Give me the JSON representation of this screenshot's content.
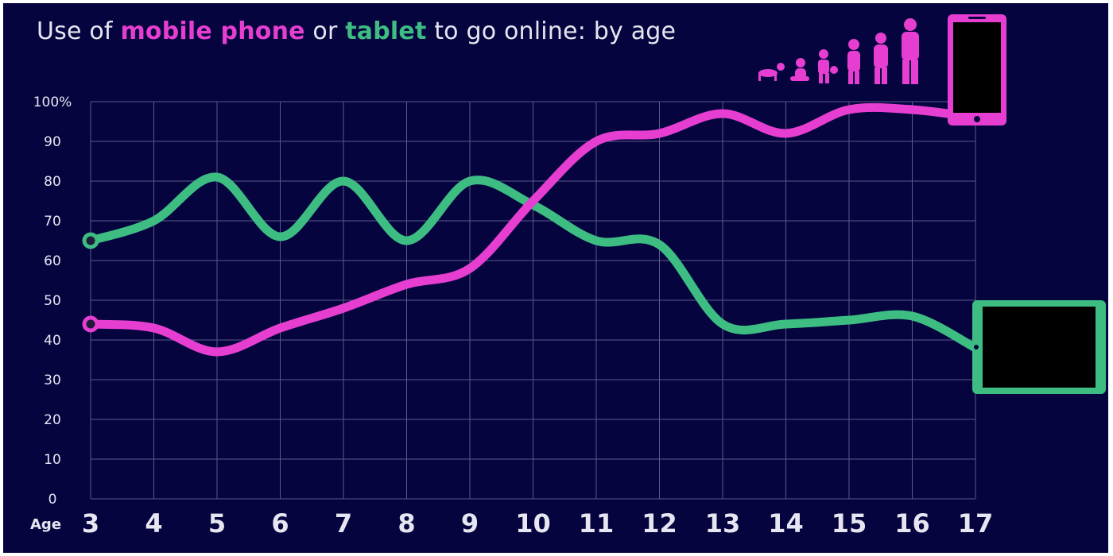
{
  "title": {
    "prefix": "Use of ",
    "mobile": "mobile phone",
    "middle": " or ",
    "tablet": "tablet",
    "suffix": " to go online: by age"
  },
  "colors": {
    "background": "#05043f",
    "mobile": "#e53ed0",
    "tablet": "#3dbd82",
    "grid": "#5a5a8a",
    "text": "#e6e6f2"
  },
  "icons": [
    "person-growth-silhouettes-icon",
    "smartphone-icon",
    "tablet-icon"
  ],
  "chart_data": {
    "type": "line",
    "title": "Use of mobile phone or tablet to go online: by age",
    "xlabel": "Age",
    "ylabel": "",
    "x": [
      3,
      4,
      5,
      6,
      7,
      8,
      9,
      10,
      11,
      12,
      13,
      14,
      15,
      16,
      17
    ],
    "x_tick_labels": [
      "3",
      "4",
      "5",
      "6",
      "7",
      "8",
      "9",
      "10",
      "11",
      "12",
      "13",
      "14",
      "15",
      "16",
      "17"
    ],
    "y_tick_labels": [
      "0",
      "10",
      "20",
      "30",
      "40",
      "50",
      "60",
      "70",
      "80",
      "90",
      "100%"
    ],
    "ylim": [
      0,
      100
    ],
    "grid": true,
    "legend": "none (series named in title)",
    "series": [
      {
        "name": "mobile phone",
        "color": "#e53ed0",
        "values": [
          44,
          43,
          37,
          43,
          48,
          54,
          58,
          75,
          90,
          92,
          97,
          92,
          98,
          98,
          96
        ]
      },
      {
        "name": "tablet",
        "color": "#3dbd82",
        "values": [
          65,
          70,
          81,
          66,
          80,
          65,
          80,
          74,
          65,
          64,
          44,
          44,
          45,
          46,
          38
        ]
      }
    ]
  }
}
